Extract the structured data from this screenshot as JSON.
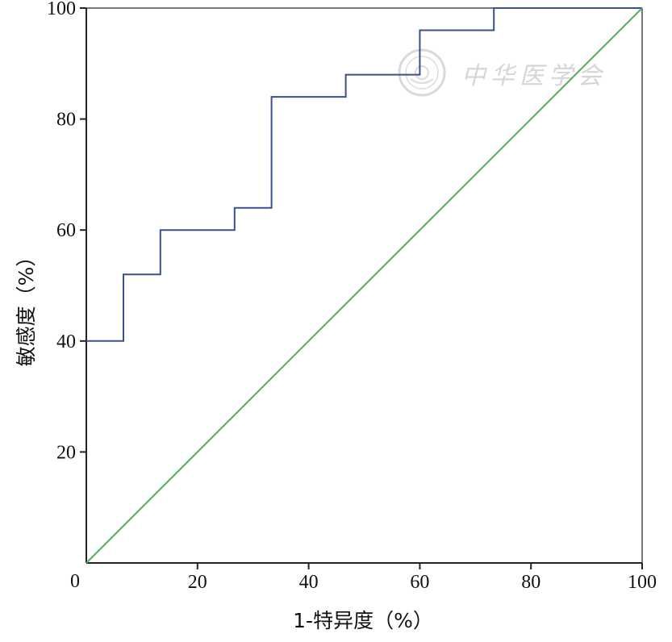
{
  "chart_data": {
    "type": "line",
    "xlabel": "1-特异度（%）",
    "ylabel": "敏感度（%）",
    "xlim": [
      0,
      100
    ],
    "ylim": [
      0,
      100
    ],
    "x_ticks": [
      "20",
      "40",
      "60",
      "80",
      "100"
    ],
    "y_ticks": [
      "20",
      "40",
      "60",
      "80",
      "100"
    ],
    "origin_label": "0",
    "grid": false,
    "series": [
      {
        "color": "#3a4f94",
        "x": [
          0,
          6.67,
          6.67,
          13.33,
          13.33,
          26.67,
          26.67,
          33.33,
          33.33,
          46.67,
          46.67,
          60,
          60,
          73.33,
          73.33,
          100
        ],
        "y": [
          40,
          40,
          52,
          52,
          60,
          60,
          64,
          64,
          84,
          84,
          88,
          88,
          96,
          96,
          100,
          100
        ]
      },
      {
        "color": "#4caf67",
        "x": [
          0,
          100
        ],
        "y": [
          0,
          100
        ]
      }
    ],
    "watermark": "中华医学会"
  }
}
